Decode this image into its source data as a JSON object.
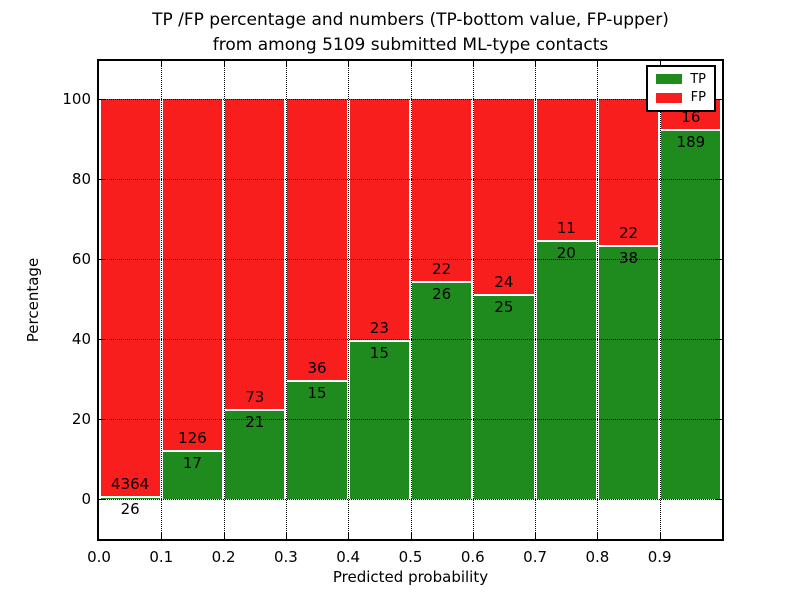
{
  "chart_data": {
    "type": "bar",
    "stacked": true,
    "normalized_to": 100,
    "title_line1": "TP /FP percentage and numbers (TP-bottom value, FP-upper)",
    "title_line2": "from among 5109 submitted ML-type contacts",
    "xlabel": "Predicted probability",
    "ylabel": "Percentage",
    "total_contacts": 5109,
    "bin_width": 0.1,
    "xticks": [
      "0.0",
      "0.1",
      "0.2",
      "0.3",
      "0.4",
      "0.5",
      "0.6",
      "0.7",
      "0.8",
      "0.9"
    ],
    "yticks": [
      0,
      20,
      40,
      60,
      80,
      100
    ],
    "ylim": [
      -10,
      110
    ],
    "xlim": [
      0.0,
      1.0
    ],
    "grid": "dotted-black-above-bars",
    "categories": [
      "0.0-0.1",
      "0.1-0.2",
      "0.2-0.3",
      "0.3-0.4",
      "0.4-0.5",
      "0.5-0.6",
      "0.6-0.7",
      "0.7-0.8",
      "0.8-0.9",
      "0.9-1.0"
    ],
    "series": [
      {
        "name": "TP",
        "color": "#1f8b1f",
        "values": [
          26,
          17,
          21,
          15,
          15,
          26,
          25,
          20,
          38,
          189
        ]
      },
      {
        "name": "FP",
        "color": "#f91e1e",
        "values": [
          4364,
          126,
          73,
          36,
          23,
          22,
          24,
          11,
          22,
          16
        ]
      }
    ],
    "legend": {
      "position": "upper right",
      "entries": [
        {
          "label": "TP",
          "color": "#1f8b1f"
        },
        {
          "label": "FP",
          "color": "#f91e1e"
        }
      ]
    }
  }
}
